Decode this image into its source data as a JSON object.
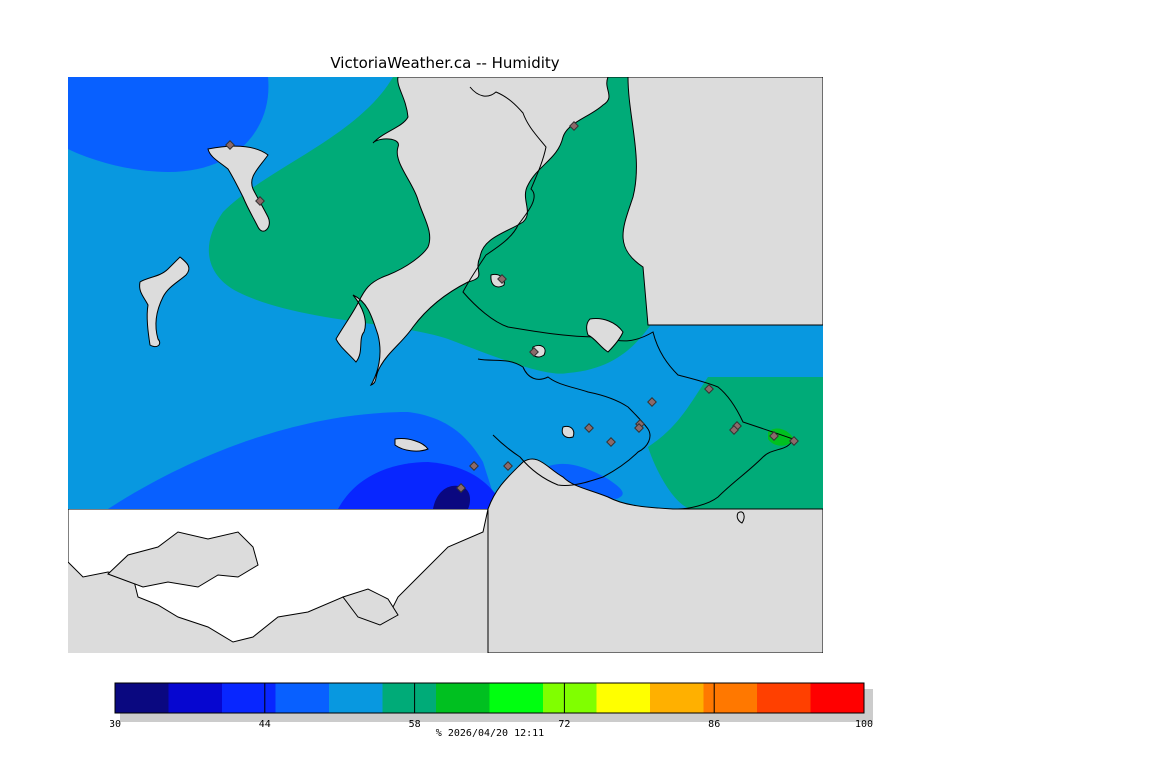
{
  "title": "VictoriaWeather.ca -- Humidity",
  "caption_unit": "%",
  "caption_timestamp": "2026/04/20 12:11",
  "colors": {
    "land_outside": "#dcdcdc",
    "blank_land": "#ffffff",
    "coast_line": "#000000",
    "station_marker": "#8c6a6a"
  },
  "legend": {
    "min": 30,
    "max": 100,
    "tick_labels": [
      "30",
      "44",
      "58",
      "72",
      "86",
      "100"
    ],
    "bands": [
      {
        "from": 30,
        "to": 35,
        "color": "#0a0880"
      },
      {
        "from": 35,
        "to": 40,
        "color": "#0606d0"
      },
      {
        "from": 40,
        "to": 45,
        "color": "#0826ff"
      },
      {
        "from": 45,
        "to": 50,
        "color": "#0860ff"
      },
      {
        "from": 50,
        "to": 55,
        "color": "#0898e0"
      },
      {
        "from": 55,
        "to": 60,
        "color": "#00ab78"
      },
      {
        "from": 60,
        "to": 65,
        "color": "#00c020"
      },
      {
        "from": 65,
        "to": 70,
        "color": "#00ff10"
      },
      {
        "from": 70,
        "to": 75,
        "color": "#80ff00"
      },
      {
        "from": 75,
        "to": 80,
        "color": "#ffff00"
      },
      {
        "from": 80,
        "to": 85,
        "color": "#ffb000"
      },
      {
        "from": 85,
        "to": 90,
        "color": "#ff7800"
      },
      {
        "from": 90,
        "to": 95,
        "color": "#ff4000"
      },
      {
        "from": 95,
        "to": 100,
        "color": "#ff0000"
      }
    ]
  },
  "humidity_zones": [
    {
      "name": "dark-blue-zone",
      "color": "#0a0880"
    },
    {
      "name": "deep-blue-zone",
      "color": "#0826ff"
    },
    {
      "name": "blue-zone",
      "color": "#0860ff"
    },
    {
      "name": "sky-blue-zone",
      "color": "#0898e0"
    },
    {
      "name": "teal-zone",
      "color": "#00ab78"
    },
    {
      "name": "green-zone",
      "color": "#00c020"
    }
  ]
}
